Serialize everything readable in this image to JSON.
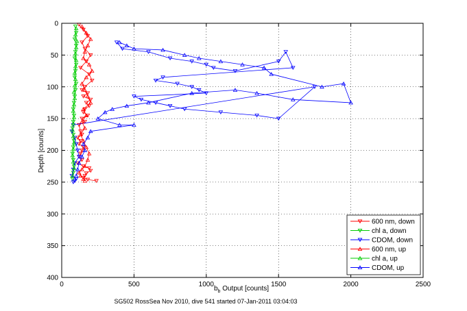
{
  "chart_data": {
    "type": "scatter",
    "xlabel_main": "b",
    "xlabel_sub": "b",
    "xlabel_rest": " Output [counts]",
    "ylabel": "Depth [counts]",
    "caption": "SG502 RossSea Nov 2010, dive 541 started 07-Jan-2011 03:04:03",
    "xlim": [
      0,
      2500
    ],
    "ylim": [
      0,
      400
    ],
    "y_reversed": true,
    "grid": true,
    "legend_position": "bottom-right",
    "xticks": [
      0,
      500,
      1000,
      1500,
      2000,
      2500
    ],
    "yticks": [
      0,
      50,
      100,
      150,
      200,
      250,
      300,
      350,
      400
    ],
    "xtick_labels": [
      "0",
      "500",
      "1000",
      "1500",
      "2000",
      "2500"
    ],
    "ytick_labels": [
      "0",
      "50",
      "100",
      "150",
      "200",
      "250",
      "300",
      "350",
      "400"
    ],
    "series": [
      {
        "name": "600 nm, down",
        "color": "#ff0000",
        "marker": "down",
        "x": [
          120,
          150,
          180,
          140,
          160,
          200,
          170,
          130,
          190,
          210,
          160,
          140,
          180,
          150,
          200,
          170,
          190,
          160,
          150,
          180,
          140,
          160,
          120,
          130,
          140,
          110,
          130,
          120,
          150,
          140,
          130,
          120,
          140,
          110,
          150,
          190,
          200,
          170,
          160,
          150,
          180,
          240
        ],
        "y": [
          2,
          10,
          20,
          30,
          40,
          50,
          60,
          70,
          80,
          90,
          100,
          105,
          110,
          115,
          120,
          125,
          130,
          135,
          140,
          145,
          150,
          155,
          160,
          170,
          175,
          180,
          185,
          190,
          195,
          200,
          205,
          210,
          215,
          220,
          225,
          228,
          232,
          236,
          240,
          243,
          246,
          248
        ]
      },
      {
        "name": "chl a, down",
        "color": "#00cc00",
        "marker": "down",
        "x": [
          95,
          100,
          90,
          100,
          95,
          90,
          100,
          95,
          90,
          100,
          95,
          90,
          85,
          80,
          85,
          80,
          75,
          80,
          85,
          80,
          75,
          80,
          85,
          80,
          75
        ],
        "y": [
          5,
          15,
          25,
          35,
          45,
          55,
          65,
          75,
          85,
          95,
          105,
          115,
          125,
          135,
          145,
          155,
          165,
          175,
          185,
          195,
          205,
          215,
          225,
          235,
          245
        ]
      },
      {
        "name": "CDOM, down",
        "color": "#0000ff",
        "marker": "down",
        "x": [
          380,
          420,
          600,
          750,
          900,
          1000,
          1050,
          1200,
          1500,
          1550,
          1600,
          700,
          650,
          800,
          900,
          950,
          1000,
          500,
          550,
          650,
          750,
          850,
          1100,
          1350,
          1500,
          1750,
          80,
          70,
          90,
          100,
          110,
          120,
          90,
          80,
          70,
          100,
          90,
          80
        ],
        "y": [
          30,
          40,
          45,
          55,
          60,
          65,
          70,
          75,
          60,
          45,
          70,
          85,
          90,
          95,
          100,
          105,
          110,
          115,
          120,
          125,
          130,
          135,
          140,
          145,
          150,
          100,
          160,
          170,
          180,
          190,
          200,
          210,
          220,
          230,
          240,
          245,
          248,
          250
        ]
      },
      {
        "name": "600 nm, up",
        "color": "#ff0000",
        "marker": "up",
        "x": [
          140,
          170,
          200,
          180,
          160,
          150,
          190,
          210,
          170,
          140,
          160,
          180,
          200,
          150,
          170,
          140,
          160,
          130,
          150,
          170,
          190,
          180,
          160,
          140,
          120,
          130,
          150,
          160
        ],
        "y": [
          5,
          15,
          25,
          35,
          45,
          55,
          65,
          75,
          85,
          95,
          105,
          115,
          125,
          135,
          145,
          155,
          165,
          175,
          185,
          195,
          205,
          215,
          225,
          230,
          235,
          240,
          245,
          248
        ]
      },
      {
        "name": "chl a, up",
        "color": "#00cc00",
        "marker": "up",
        "x": [
          100,
          95,
          105,
          100,
          95,
          100,
          95,
          90,
          95,
          90,
          85,
          90,
          85,
          80,
          85,
          80,
          75,
          80,
          85,
          80,
          75,
          80,
          85,
          75
        ],
        "y": [
          8,
          18,
          28,
          38,
          48,
          58,
          68,
          78,
          88,
          98,
          108,
          118,
          128,
          138,
          148,
          158,
          168,
          178,
          188,
          198,
          208,
          218,
          228,
          240
        ]
      },
      {
        "name": "CDOM, up",
        "color": "#0000ff",
        "marker": "up",
        "x": [
          400,
          450,
          500,
          700,
          850,
          950,
          1100,
          1250,
          1400,
          1450,
          1800,
          1950,
          2000,
          1600,
          1350,
          1200,
          900,
          600,
          450,
          350,
          300,
          250,
          400,
          500,
          200,
          180,
          150,
          160,
          140,
          120,
          110,
          100
        ],
        "y": [
          30,
          35,
          40,
          42,
          50,
          55,
          60,
          65,
          70,
          80,
          100,
          95,
          125,
          120,
          110,
          105,
          110,
          125,
          130,
          135,
          140,
          150,
          160,
          160,
          170,
          180,
          190,
          200,
          210,
          220,
          230,
          240
        ]
      }
    ]
  }
}
